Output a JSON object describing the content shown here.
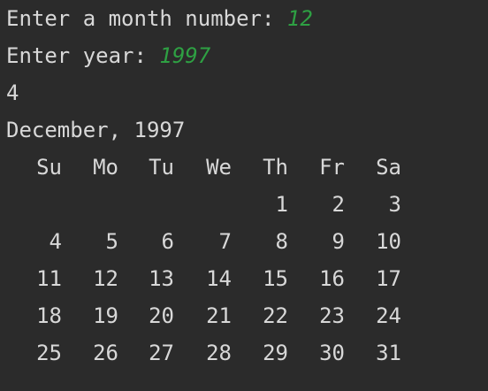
{
  "console": {
    "prompt_month": "Enter a month number: ",
    "input_month": "12",
    "prompt_year": "Enter year: ",
    "input_year": "1997",
    "output_value": "4",
    "calendar_title": "December, 1997",
    "weekday_headers": [
      "Su",
      "Mo",
      "Tu",
      "We",
      "Th",
      "Fr",
      "Sa"
    ],
    "weeks": [
      [
        "",
        "",
        "",
        "",
        "1",
        "2",
        "3"
      ],
      [
        "4",
        "5",
        "6",
        "7",
        "8",
        "9",
        "10"
      ],
      [
        "11",
        "12",
        "13",
        "14",
        "15",
        "16",
        "17"
      ],
      [
        "18",
        "19",
        "20",
        "21",
        "22",
        "23",
        "24"
      ],
      [
        "25",
        "26",
        "27",
        "28",
        "29",
        "30",
        "31"
      ]
    ]
  },
  "colors": {
    "background": "#2b2b2b",
    "text": "#d8d8d8",
    "user_input": "#2ea043"
  }
}
